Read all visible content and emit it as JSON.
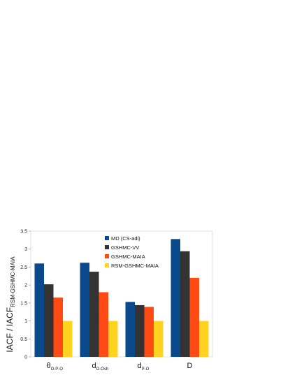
{
  "chart_data": {
    "type": "bar",
    "ylabel": "IACF / IACF",
    "ylabel_subscript": "RSM-GSHMC-MAIA",
    "ylim": [
      0,
      3.5
    ],
    "yticks": [
      "0",
      "0.5",
      "1",
      "1.5",
      "2",
      "2.5",
      "3",
      "3.5"
    ],
    "grid": false,
    "legend_position": "top-center",
    "categories": [
      {
        "main": "θ",
        "sub": "O-P-O"
      },
      {
        "main": "d",
        "sub": "O-Osh"
      },
      {
        "main": "d",
        "sub": "P-O"
      },
      {
        "main": "D",
        "sub": ""
      }
    ],
    "series": [
      {
        "name": "MD (CS-adi)",
        "color": "#0a4a8c",
        "values": [
          2.6,
          2.62,
          1.53,
          3.28
        ]
      },
      {
        "name": "GSHMC-VV",
        "color": "#333333",
        "values": [
          2.02,
          2.37,
          1.44,
          2.94
        ]
      },
      {
        "name": "GSHMC-MAIA",
        "color": "#ff4a14",
        "values": [
          1.65,
          1.8,
          1.39,
          2.2
        ]
      },
      {
        "name": "RSM-GSHMC-MAIA",
        "color": "#ffd320",
        "values": [
          1.0,
          1.0,
          1.0,
          1.0
        ]
      }
    ]
  }
}
